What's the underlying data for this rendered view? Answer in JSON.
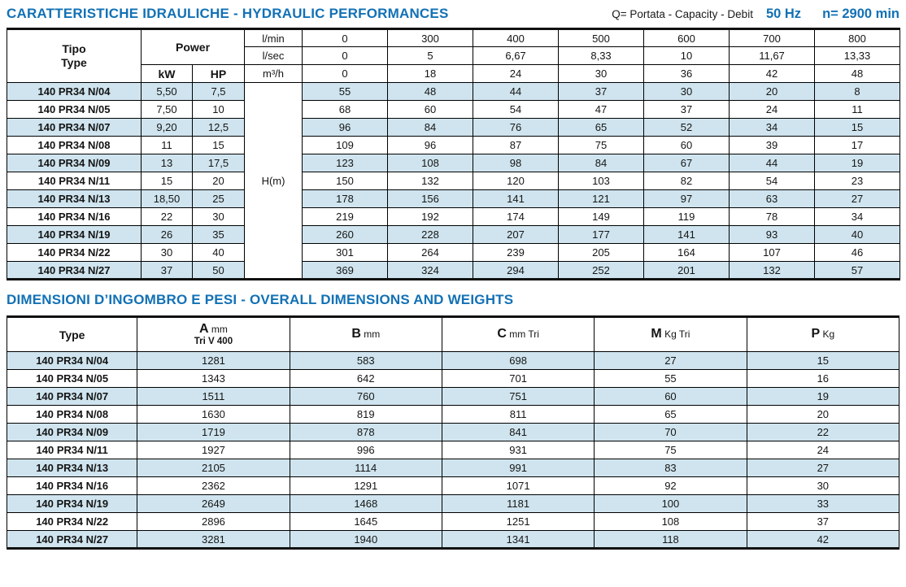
{
  "titles": {
    "hydraulic": "CARATTERISTICHE IDRAULICHE - HYDRAULIC PERFORMANCES",
    "capacity_note": "Q= Portata - Capacity - Debit",
    "frequency": "50 Hz",
    "speed": "n= 2900 min",
    "dimensions": "DIMENSIONI D’INGOMBRO E PESI - OVERALL DIMENSIONS AND WEIGHTS"
  },
  "colors": {
    "accent_blue": "#1271b5",
    "row_stripe": "#cfe4ee"
  },
  "hydraulic_table": {
    "header": {
      "tipo": "Tipo",
      "type": "Type",
      "power": "Power",
      "kw": "kW",
      "hp": "HP",
      "head_label": "H(m)"
    },
    "flow_header": [
      {
        "unit": "l/min",
        "values": [
          "0",
          "300",
          "400",
          "500",
          "600",
          "700",
          "800"
        ]
      },
      {
        "unit": "l/sec",
        "values": [
          "0",
          "5",
          "6,67",
          "8,33",
          "10",
          "11,67",
          "13,33"
        ]
      },
      {
        "unit": "m³/h",
        "values": [
          "0",
          "18",
          "24",
          "30",
          "36",
          "42",
          "48"
        ]
      }
    ],
    "rows": [
      {
        "type": "140 PR34 N/04",
        "kw": "5,50",
        "hp": "7,5",
        "values": [
          "55",
          "48",
          "44",
          "37",
          "30",
          "20",
          "8"
        ]
      },
      {
        "type": "140 PR34 N/05",
        "kw": "7,50",
        "hp": "10",
        "values": [
          "68",
          "60",
          "54",
          "47",
          "37",
          "24",
          "11"
        ]
      },
      {
        "type": "140 PR34 N/07",
        "kw": "9,20",
        "hp": "12,5",
        "values": [
          "96",
          "84",
          "76",
          "65",
          "52",
          "34",
          "15"
        ]
      },
      {
        "type": "140 PR34 N/08",
        "kw": "11",
        "hp": "15",
        "values": [
          "109",
          "96",
          "87",
          "75",
          "60",
          "39",
          "17"
        ]
      },
      {
        "type": "140 PR34 N/09",
        "kw": "13",
        "hp": "17,5",
        "values": [
          "123",
          "108",
          "98",
          "84",
          "67",
          "44",
          "19"
        ]
      },
      {
        "type": "140 PR34 N/11",
        "kw": "15",
        "hp": "20",
        "values": [
          "150",
          "132",
          "120",
          "103",
          "82",
          "54",
          "23"
        ]
      },
      {
        "type": "140 PR34 N/13",
        "kw": "18,50",
        "hp": "25",
        "values": [
          "178",
          "156",
          "141",
          "121",
          "97",
          "63",
          "27"
        ]
      },
      {
        "type": "140 PR34 N/16",
        "kw": "22",
        "hp": "30",
        "values": [
          "219",
          "192",
          "174",
          "149",
          "119",
          "78",
          "34"
        ]
      },
      {
        "type": "140 PR34 N/19",
        "kw": "26",
        "hp": "35",
        "values": [
          "260",
          "228",
          "207",
          "177",
          "141",
          "93",
          "40"
        ]
      },
      {
        "type": "140 PR34 N/22",
        "kw": "30",
        "hp": "40",
        "values": [
          "301",
          "264",
          "239",
          "205",
          "164",
          "107",
          "46"
        ]
      },
      {
        "type": "140 PR34 N/27",
        "kw": "37",
        "hp": "50",
        "values": [
          "369",
          "324",
          "294",
          "252",
          "201",
          "132",
          "57"
        ]
      }
    ]
  },
  "dimensions_table": {
    "header": {
      "type": "Type",
      "columns": [
        {
          "letter": "A",
          "unit": "mm",
          "sub": "Tri V 400"
        },
        {
          "letter": "B",
          "unit": "mm",
          "sub": ""
        },
        {
          "letter": "C",
          "unit": "mm Tri",
          "sub": ""
        },
        {
          "letter": "M",
          "unit": "Kg Tri",
          "sub": ""
        },
        {
          "letter": "P",
          "unit": "Kg",
          "sub": ""
        }
      ]
    },
    "rows": [
      {
        "type": "140 PR34 N/04",
        "values": [
          "1281",
          "583",
          "698",
          "27",
          "15"
        ]
      },
      {
        "type": "140 PR34 N/05",
        "values": [
          "1343",
          "642",
          "701",
          "55",
          "16"
        ]
      },
      {
        "type": "140 PR34 N/07",
        "values": [
          "1511",
          "760",
          "751",
          "60",
          "19"
        ]
      },
      {
        "type": "140 PR34 N/08",
        "values": [
          "1630",
          "819",
          "811",
          "65",
          "20"
        ]
      },
      {
        "type": "140 PR34 N/09",
        "values": [
          "1719",
          "878",
          "841",
          "70",
          "22"
        ]
      },
      {
        "type": "140 PR34 N/11",
        "values": [
          "1927",
          "996",
          "931",
          "75",
          "24"
        ]
      },
      {
        "type": "140 PR34 N/13",
        "values": [
          "2105",
          "1114",
          "991",
          "83",
          "27"
        ]
      },
      {
        "type": "140 PR34 N/16",
        "values": [
          "2362",
          "1291",
          "1071",
          "92",
          "30"
        ]
      },
      {
        "type": "140 PR34 N/19",
        "values": [
          "2649",
          "1468",
          "1181",
          "100",
          "33"
        ]
      },
      {
        "type": "140 PR34 N/22",
        "values": [
          "2896",
          "1645",
          "1251",
          "108",
          "37"
        ]
      },
      {
        "type": "140 PR34 N/27",
        "values": [
          "3281",
          "1940",
          "1341",
          "118",
          "42"
        ]
      }
    ]
  }
}
